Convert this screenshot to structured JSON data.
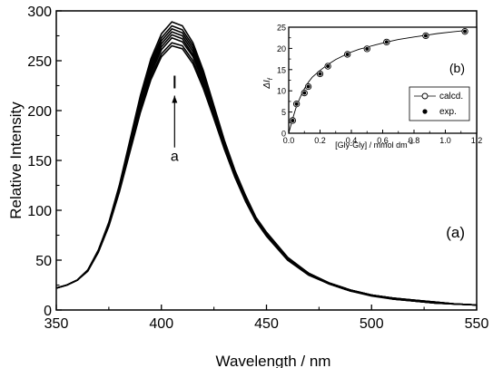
{
  "chart_data": [
    {
      "panel": "(a)",
      "type": "line",
      "xlabel": "Wavelength / nm",
      "ylabel": "Relative Intensity",
      "xlim": [
        350,
        550
      ],
      "ylim": [
        0,
        300
      ],
      "xticks": [
        "350",
        "400",
        "450",
        "500",
        "550"
      ],
      "yticks": [
        "0",
        "50",
        "100",
        "150",
        "200",
        "250",
        "300"
      ],
      "annotation": {
        "label": "a",
        "arrow_from": 163,
        "arrow_to": 215,
        "at_x": 405
      },
      "x": [
        350,
        355,
        360,
        365,
        370,
        375,
        380,
        385,
        390,
        395,
        400,
        405,
        410,
        415,
        420,
        425,
        430,
        435,
        440,
        445,
        450,
        460,
        470,
        480,
        490,
        500,
        510,
        520,
        530,
        540,
        550
      ],
      "series": [
        {
          "values": [
            22,
            25,
            30,
            40,
            60,
            88,
            125,
            170,
            215,
            252,
            277,
            289,
            285,
            268,
            240,
            205,
            170,
            140,
            115,
            93,
            78,
            53,
            37,
            27,
            20,
            15,
            12,
            10,
            8,
            6,
            5
          ]
        },
        {
          "values": [
            22,
            25,
            30,
            40,
            60,
            87,
            124,
            168,
            212,
            249,
            273,
            285,
            281,
            265,
            237,
            203,
            168,
            139,
            114,
            92,
            77,
            52,
            37,
            27,
            20,
            15,
            12,
            10,
            8,
            6,
            5
          ]
        },
        {
          "values": [
            22,
            25,
            30,
            40,
            59,
            87,
            123,
            167,
            210,
            246,
            270,
            282,
            278,
            262,
            235,
            201,
            167,
            138,
            113,
            92,
            77,
            52,
            37,
            27,
            20,
            15,
            12,
            10,
            8,
            6,
            5
          ]
        },
        {
          "values": [
            22,
            25,
            30,
            40,
            59,
            86,
            122,
            165,
            208,
            243,
            267,
            279,
            275,
            259,
            232,
            199,
            166,
            137,
            112,
            91,
            76,
            52,
            36,
            26,
            20,
            15,
            12,
            9,
            8,
            6,
            5
          ]
        },
        {
          "values": [
            22,
            25,
            30,
            40,
            59,
            86,
            121,
            163,
            205,
            240,
            264,
            276,
            272,
            256,
            230,
            197,
            165,
            136,
            111,
            91,
            76,
            51,
            36,
            26,
            20,
            15,
            12,
            9,
            7,
            6,
            5
          ]
        },
        {
          "values": [
            22,
            25,
            30,
            40,
            58,
            85,
            120,
            162,
            203,
            237,
            261,
            273,
            269,
            254,
            228,
            196,
            164,
            135,
            111,
            90,
            75,
            51,
            36,
            26,
            19,
            15,
            11,
            9,
            7,
            6,
            5
          ]
        },
        {
          "values": [
            22,
            25,
            30,
            39,
            58,
            85,
            119,
            160,
            200,
            234,
            257,
            268,
            265,
            250,
            225,
            194,
            162,
            134,
            110,
            90,
            75,
            51,
            36,
            26,
            19,
            15,
            11,
            9,
            7,
            6,
            5
          ]
        },
        {
          "values": [
            22,
            25,
            30,
            39,
            58,
            84,
            118,
            158,
            198,
            231,
            254,
            265,
            262,
            247,
            222,
            192,
            161,
            133,
            109,
            89,
            74,
            50,
            35,
            26,
            19,
            14,
            11,
            9,
            7,
            6,
            5
          ]
        }
      ]
    },
    {
      "panel": "(b)",
      "type": "scatter",
      "xlabel": "[Gly-Gly] / mmol dm",
      "xlabel_sup": "-3",
      "ylabel": "ΔI",
      "ylabel_sub": "f",
      "xlim": [
        0.0,
        1.2
      ],
      "ylim": [
        0,
        25
      ],
      "xticks": [
        "0.0",
        "0.2",
        "0.4",
        "0.6",
        "0.8",
        "1.0",
        "1.2"
      ],
      "yticks": [
        "0",
        "5",
        "10",
        "15",
        "20",
        "25"
      ],
      "legend_position": "right",
      "series": [
        {
          "name": "calcd.",
          "marker": "open-circle",
          "line": true,
          "x": [
            0.0,
            0.025,
            0.05,
            0.075,
            0.1,
            0.125,
            0.15,
            0.2,
            0.25,
            0.3,
            0.35,
            0.375,
            0.45,
            0.5,
            0.55,
            0.625,
            0.7,
            0.8,
            0.875,
            0.95,
            1.05,
            1.125
          ],
          "y": [
            0,
            3.4,
            6.4,
            8.6,
            10.5,
            12.0,
            13.2,
            14.8,
            16.2,
            17.4,
            18.3,
            18.8,
            19.8,
            20.3,
            20.8,
            21.5,
            22.1,
            22.7,
            23.1,
            23.5,
            23.9,
            24.2
          ]
        },
        {
          "name": "exp.",
          "marker": "filled-circle",
          "line": false,
          "x": [
            0.025,
            0.05,
            0.1,
            0.125,
            0.2,
            0.25,
            0.375,
            0.5,
            0.625,
            0.875,
            1.125
          ],
          "y": [
            3.0,
            6.9,
            9.5,
            11.0,
            14.0,
            15.8,
            18.6,
            19.9,
            21.5,
            23.0,
            24.0
          ]
        }
      ]
    }
  ]
}
